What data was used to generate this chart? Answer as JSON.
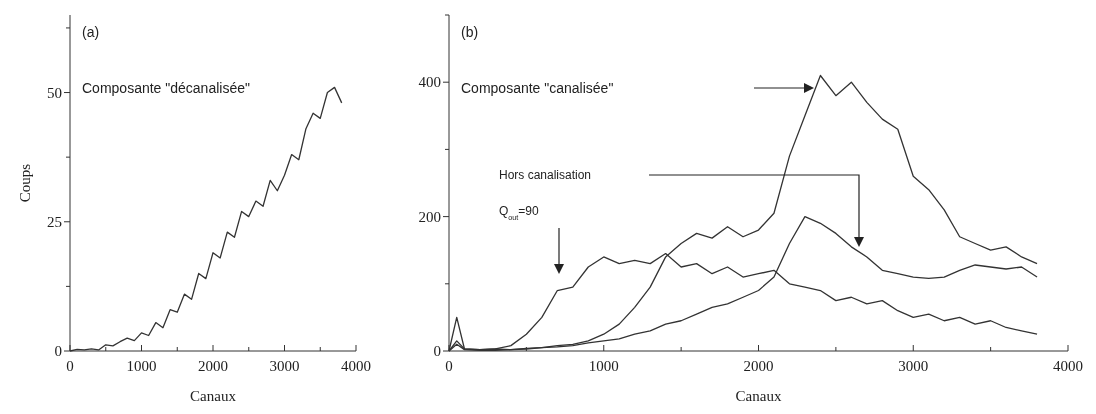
{
  "chart_data": [
    {
      "type": "line",
      "xlabel": "Canaux",
      "ylabel": "Coups",
      "annotations": [
        "(a)",
        "Composante \"décanalisée\""
      ],
      "x": [
        0,
        100,
        200,
        300,
        400,
        500,
        600,
        700,
        800,
        900,
        1000,
        1100,
        1200,
        1300,
        1400,
        1500,
        1600,
        1700,
        1800,
        1900,
        2000,
        2100,
        2200,
        2300,
        2400,
        2500,
        2600,
        2700,
        2800,
        2900,
        3000,
        3100,
        3200,
        3300,
        3400,
        3500,
        3600,
        3700,
        3800
      ],
      "series": [
        {
          "color": "#333333",
          "values": [
            0,
            0.3,
            0.2,
            0.4,
            0.2,
            1.2,
            1,
            1.8,
            2.5,
            2,
            3.5,
            3,
            5.5,
            4.5,
            8,
            7.5,
            11,
            10,
            15,
            14,
            19,
            18,
            23,
            22,
            27,
            26,
            29,
            28,
            33,
            31,
            34,
            38,
            37,
            43,
            46,
            45,
            50,
            51,
            48
          ]
        }
      ],
      "xlim": [
        0,
        4000
      ],
      "ylim": [
        0,
        65
      ],
      "xticks": [
        0,
        {
          "value": 500,
          "label": null
        },
        1000,
        {
          "value": 1500,
          "label": null
        },
        2000,
        {
          "value": 2500,
          "label": null
        },
        3000,
        {
          "value": 3500,
          "label": null
        },
        4000
      ],
      "yticks": [
        0,
        {
          "value": 12.5,
          "label": null
        },
        25,
        {
          "value": 37.5,
          "label": null
        },
        50,
        {
          "value": 62.5,
          "label": null
        }
      ]
    },
    {
      "type": "line",
      "xlabel": "Canaux",
      "annotations": [
        "(b)",
        "Composante \"canalisée\"",
        "Hors canalisation",
        "Q$_{out}$=90"
      ],
      "x": [
        0,
        50,
        100,
        200,
        300,
        400,
        500,
        600,
        700,
        800,
        900,
        1000,
        1100,
        1200,
        1300,
        1400,
        1500,
        1600,
        1700,
        1800,
        1900,
        2000,
        2100,
        2200,
        2300,
        2400,
        2500,
        2600,
        2700,
        2800,
        2900,
        3000,
        3100,
        3200,
        3300,
        3400,
        3500,
        3600,
        3700,
        3800
      ],
      "series": [
        {
          "color": "#333333",
          "values": [
            0,
            50,
            3,
            2,
            3,
            2,
            4,
            5,
            8,
            10,
            15,
            25,
            40,
            65,
            95,
            140,
            160,
            175,
            168,
            185,
            170,
            180,
            205,
            290,
            350,
            410,
            380,
            400,
            370,
            345,
            330,
            260,
            240,
            210,
            170,
            160,
            150,
            155,
            140,
            130
          ]
        },
        {
          "color": "#333333",
          "values": [
            0,
            10,
            2,
            1,
            1,
            2,
            3,
            5,
            6,
            8,
            12,
            15,
            18,
            25,
            30,
            40,
            45,
            55,
            65,
            70,
            80,
            90,
            110,
            160,
            200,
            190,
            175,
            155,
            140,
            120,
            115,
            110,
            108,
            110,
            120,
            128,
            125,
            122,
            125,
            110
          ]
        },
        {
          "color": "#333333",
          "values": [
            0,
            15,
            3,
            2,
            3,
            8,
            25,
            50,
            90,
            95,
            125,
            140,
            130,
            135,
            130,
            145,
            125,
            130,
            115,
            125,
            110,
            115,
            120,
            100,
            95,
            90,
            75,
            80,
            70,
            75,
            60,
            50,
            55,
            45,
            50,
            40,
            45,
            35,
            30,
            25
          ]
        }
      ],
      "xlim": [
        0,
        4000
      ],
      "ylim": [
        0,
        500
      ],
      "xticks": [
        0,
        {
          "value": 500,
          "label": null
        },
        1000,
        {
          "value": 1500,
          "label": null
        },
        2000,
        {
          "value": 2500,
          "label": null
        },
        3000,
        {
          "value": 3500,
          "label": null
        },
        4000
      ],
      "yticks": [
        0,
        {
          "value": 100,
          "label": null
        },
        200,
        {
          "value": 300,
          "label": null
        },
        400,
        {
          "value": 500,
          "label": null
        }
      ]
    }
  ]
}
